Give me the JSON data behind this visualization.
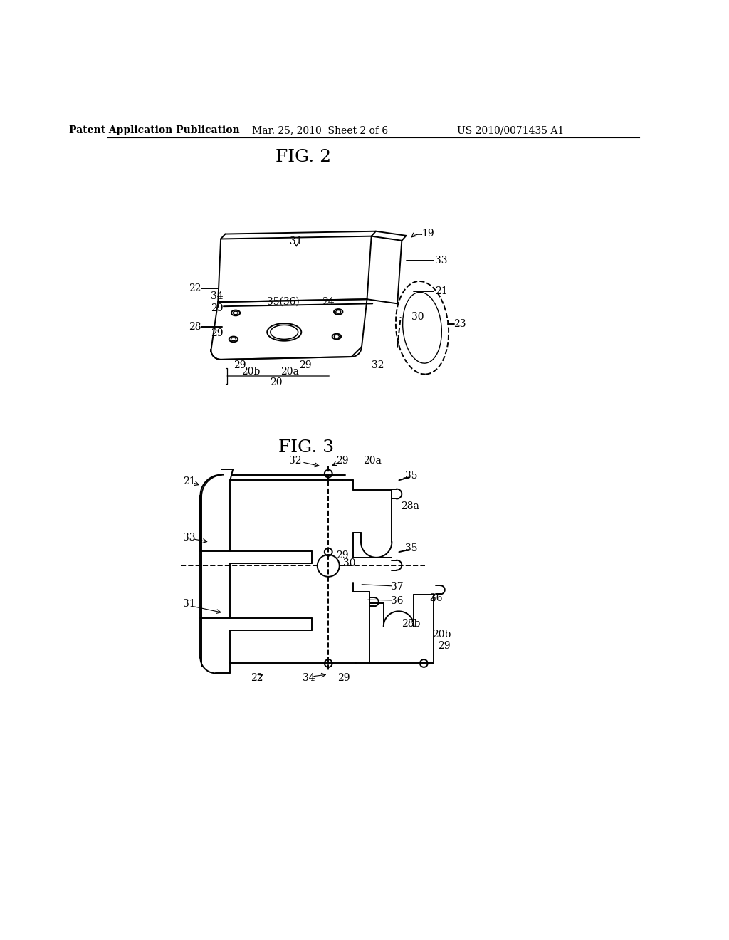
{
  "background_color": "#ffffff",
  "header_left": "Patent Application Publication",
  "header_center": "Mar. 25, 2010  Sheet 2 of 6",
  "header_right": "US 2010/0071435 A1",
  "fig2_title": "FIG. 2",
  "fig3_title": "FIG. 3",
  "line_color": "#000000",
  "text_color": "#000000",
  "font_size_header": 10,
  "font_size_fig_title": 18,
  "font_size_label": 10
}
